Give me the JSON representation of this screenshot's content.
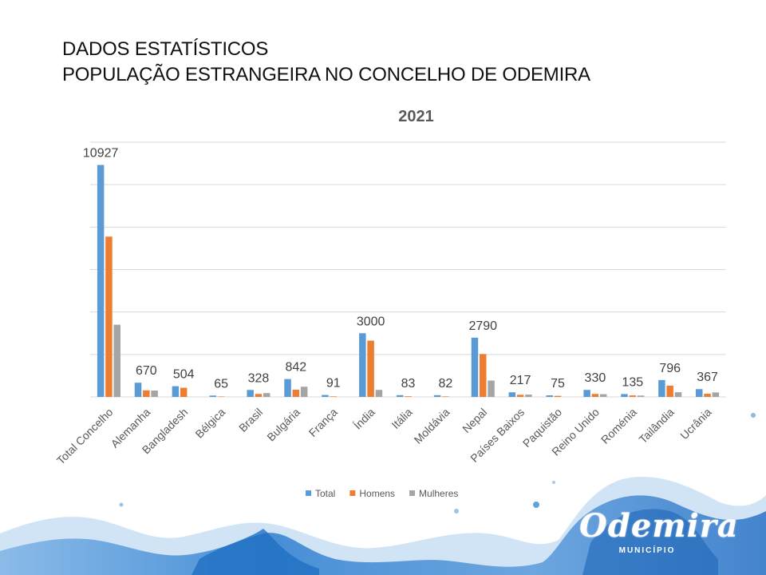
{
  "header": {
    "line1": "DADOS ESTATÍSTICOS",
    "line2": "POPULAÇÃO ESTRANGEIRA NO CONCELHO DE ODEMIRA"
  },
  "chart_data": {
    "type": "bar",
    "title": "2021",
    "categories": [
      "Total Concelho",
      "Alemanha",
      "Bangladesh",
      "Bélgica",
      "Brasil",
      "Bulgária",
      "França",
      "Índia",
      "Itália",
      "Moldávia",
      "Nepal",
      "Países Baixos",
      "Paquistão",
      "Reino Unido",
      "Roménia",
      "Tailândia",
      "Ucrânia"
    ],
    "series": [
      {
        "name": "Total",
        "color": "#5B9BD5",
        "values": [
          10927,
          670,
          504,
          65,
          328,
          842,
          91,
          3000,
          83,
          82,
          2790,
          217,
          75,
          330,
          135,
          796,
          367
        ]
      },
      {
        "name": "Homens",
        "color": "#ED7D31",
        "values": [
          7550,
          310,
          430,
          20,
          140,
          340,
          25,
          2650,
          30,
          25,
          2020,
          100,
          50,
          140,
          70,
          530,
          150
        ]
      },
      {
        "name": "Mulheres",
        "color": "#A5A5A5",
        "values": [
          3400,
          300,
          0,
          0,
          180,
          480,
          0,
          330,
          0,
          0,
          770,
          110,
          0,
          130,
          65,
          220,
          210
        ]
      }
    ],
    "data_labels_series": "Total",
    "ylim": [
      0,
      12000
    ],
    "grid_step": 2000,
    "grid": true,
    "legend": "bottom",
    "xlabel": "",
    "ylabel": ""
  },
  "logo": {
    "name": "Odemira",
    "subtitle": "MUNICÍPIO"
  },
  "colors": {
    "grid": "#D9D9D9",
    "text": "#595959",
    "title": "#595959",
    "splash_dark": "#1F6FC2",
    "splash_light": "#9CC7EE"
  }
}
